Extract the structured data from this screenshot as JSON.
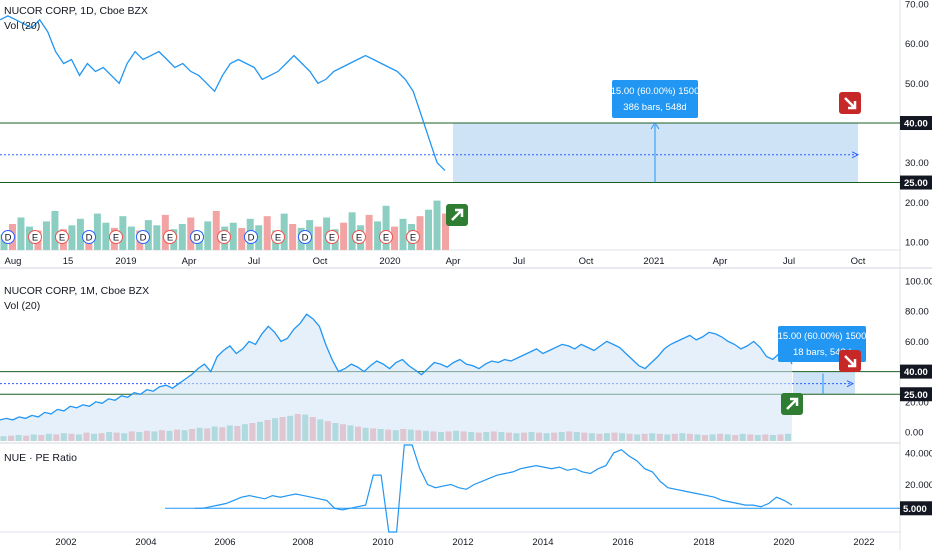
{
  "colors": {
    "price_line": "#2196f3",
    "area_fill": "#cfe3f8",
    "range_box": "#c7def6",
    "level_line": "#1b5e20",
    "dotted_line": "#2962ff",
    "info_box": "#2196f3",
    "vol_up": "#8ccfc2",
    "vol_down": "#f2a3a3",
    "buy_arrow": "#2e7d32",
    "sell_arrow": "#c62828",
    "tag_bg": "#131722",
    "pe_line": "#2196f3"
  },
  "panels": {
    "top": {
      "title": "NUCOR CORP, 1D, Cboe BZX",
      "vol_label": "Vol (20)"
    },
    "bottom": {
      "title": "NUCOR CORP, 1M, Cboe BZX",
      "vol_label": "Vol (20)"
    },
    "pe": {
      "title": "NUE · PE Ratio"
    }
  },
  "icons": {
    "buy": "arrow-up-right-icon",
    "sell": "arrow-down-right-icon"
  },
  "chart_data": [
    {
      "type": "line",
      "name": "daily",
      "title": "NUCOR CORP, 1D, Cboe BZX",
      "x_ticks": [
        "Aug",
        "15",
        "2019",
        "Apr",
        "Jul",
        "Oct",
        "2020",
        "Apr",
        "Jul",
        "Oct",
        "2021",
        "Apr",
        "Jul",
        "Oct"
      ],
      "y_ticks": [
        "70.00",
        "60.00",
        "50.00",
        "40.00",
        "30.00",
        "20.00",
        "10.00"
      ],
      "ylim": [
        8,
        71
      ],
      "markers": [
        "D",
        "E",
        "E",
        "D",
        "E",
        "D",
        "E",
        "D",
        "E",
        "D",
        "E",
        "D",
        "E",
        "E",
        "E",
        "E"
      ],
      "series": [
        {
          "values": [
            66,
            67,
            66,
            65,
            64,
            66,
            63,
            58,
            55,
            56,
            52,
            55,
            53,
            54,
            52,
            50,
            55,
            58,
            56,
            57,
            58,
            56,
            54,
            55,
            53,
            52,
            50,
            48,
            52,
            55,
            56,
            55,
            54,
            51,
            52,
            53,
            55,
            57,
            55,
            53,
            50,
            51,
            53,
            54,
            55,
            56,
            57,
            56,
            55,
            54,
            53,
            51,
            48,
            42,
            36,
            30,
            28
          ]
        }
      ],
      "volume": [
        12,
        20,
        25,
        18,
        15,
        22,
        30,
        16,
        19,
        24,
        14,
        28,
        21,
        17,
        26,
        18,
        15,
        23,
        19,
        27,
        16,
        20,
        25,
        14,
        22,
        30,
        18,
        21,
        17,
        24,
        19,
        26,
        15,
        28,
        20,
        17,
        23,
        18,
        25,
        16,
        21,
        29,
        19,
        27,
        22,
        34,
        18,
        24,
        20,
        26,
        31,
        38,
        28
      ]
    },
    {
      "type": "line",
      "name": "monthly",
      "title": "NUCOR CORP, 1M, Cboe BZX",
      "x_ticks": [
        "2002",
        "2004",
        "2006",
        "2008",
        "2010",
        "2012",
        "2014",
        "2016",
        "2018",
        "2020",
        "2022"
      ],
      "y_ticks": [
        "100.00",
        "80.00",
        "60.00",
        "40.00",
        "20.00",
        "0.00"
      ],
      "ylim": [
        -5,
        102
      ],
      "series": [
        {
          "values": [
            8,
            9,
            8,
            10,
            9,
            11,
            10,
            13,
            12,
            15,
            14,
            17,
            16,
            18,
            17,
            20,
            19,
            22,
            21,
            24,
            23,
            26,
            25,
            28,
            27,
            30,
            31,
            29,
            32,
            35,
            38,
            42,
            45,
            40,
            50,
            54,
            57,
            52,
            55,
            60,
            58,
            65,
            70,
            66,
            60,
            62,
            68,
            72,
            78,
            75,
            70,
            58,
            48,
            40,
            42,
            45,
            43,
            40,
            44,
            47,
            45,
            42,
            46,
            48,
            44,
            41,
            38,
            42,
            46,
            45,
            43,
            46,
            48,
            45,
            44,
            42,
            45,
            47,
            46,
            48,
            47,
            49,
            51,
            53,
            55,
            52,
            54,
            56,
            58,
            57,
            55,
            58,
            56,
            54,
            57,
            60,
            58,
            56,
            52,
            48,
            44,
            42,
            46,
            50,
            55,
            58,
            60,
            62,
            64,
            61,
            63,
            66,
            65,
            63,
            60,
            58,
            55,
            57,
            60,
            56,
            50,
            48,
            52,
            55,
            45
          ]
        }
      ],
      "volume": [
        8,
        9,
        10,
        9,
        11,
        10,
        12,
        11,
        13,
        12,
        11,
        14,
        12,
        13,
        15,
        14,
        13,
        16,
        15,
        17,
        16,
        18,
        17,
        19,
        18,
        20,
        22,
        21,
        24,
        23,
        26,
        25,
        28,
        30,
        32,
        35,
        38,
        40,
        42,
        45,
        44,
        40,
        36,
        33,
        30,
        28,
        26,
        24,
        22,
        21,
        20,
        19,
        18,
        20,
        19,
        18,
        17,
        16,
        15,
        16,
        17,
        16,
        15,
        14,
        15,
        16,
        15,
        14,
        13,
        14,
        15,
        14,
        13,
        14,
        15,
        16,
        15,
        14,
        13,
        12,
        13,
        14,
        13,
        12,
        11,
        12,
        13,
        12,
        11,
        12,
        13,
        12,
        11,
        10,
        11,
        12,
        11,
        10,
        12,
        11,
        10,
        11,
        10,
        11,
        12
      ]
    },
    {
      "type": "line",
      "name": "pe_ratio",
      "title": "NUE · PE Ratio",
      "y_ticks": [
        "40.000",
        "20.000",
        "5.000"
      ],
      "ylim": [
        -10,
        45
      ],
      "series": [
        {
          "values": [
            5,
            5,
            6,
            7,
            8,
            10,
            12,
            13,
            12,
            11,
            13,
            12,
            13,
            14,
            13,
            12,
            11,
            10,
            5,
            4,
            5,
            6,
            7,
            26,
            26,
            -10,
            -10,
            45,
            45,
            30,
            20,
            18,
            19,
            20,
            18,
            17,
            20,
            22,
            24,
            26,
            27,
            28,
            30,
            31,
            32,
            31,
            30,
            31,
            29,
            30,
            28,
            27,
            30,
            32,
            40,
            42,
            38,
            35,
            30,
            28,
            22,
            18,
            17,
            16,
            15,
            14,
            13,
            12,
            10,
            9,
            8,
            7,
            7,
            6,
            8,
            12,
            10,
            7
          ]
        }
      ]
    }
  ],
  "price_tags": {
    "top": [
      "40.00",
      "25.00"
    ],
    "bottom": [
      "40.00",
      "25.00",
      "5.000"
    ]
  },
  "measure_boxes": {
    "top": {
      "line1": "15.00 (60.00%) 1500",
      "line2": "386 bars, 548d"
    },
    "bottom": {
      "line1": "15.00 (60.00%) 1500",
      "line2": "18 bars, 548d"
    }
  }
}
